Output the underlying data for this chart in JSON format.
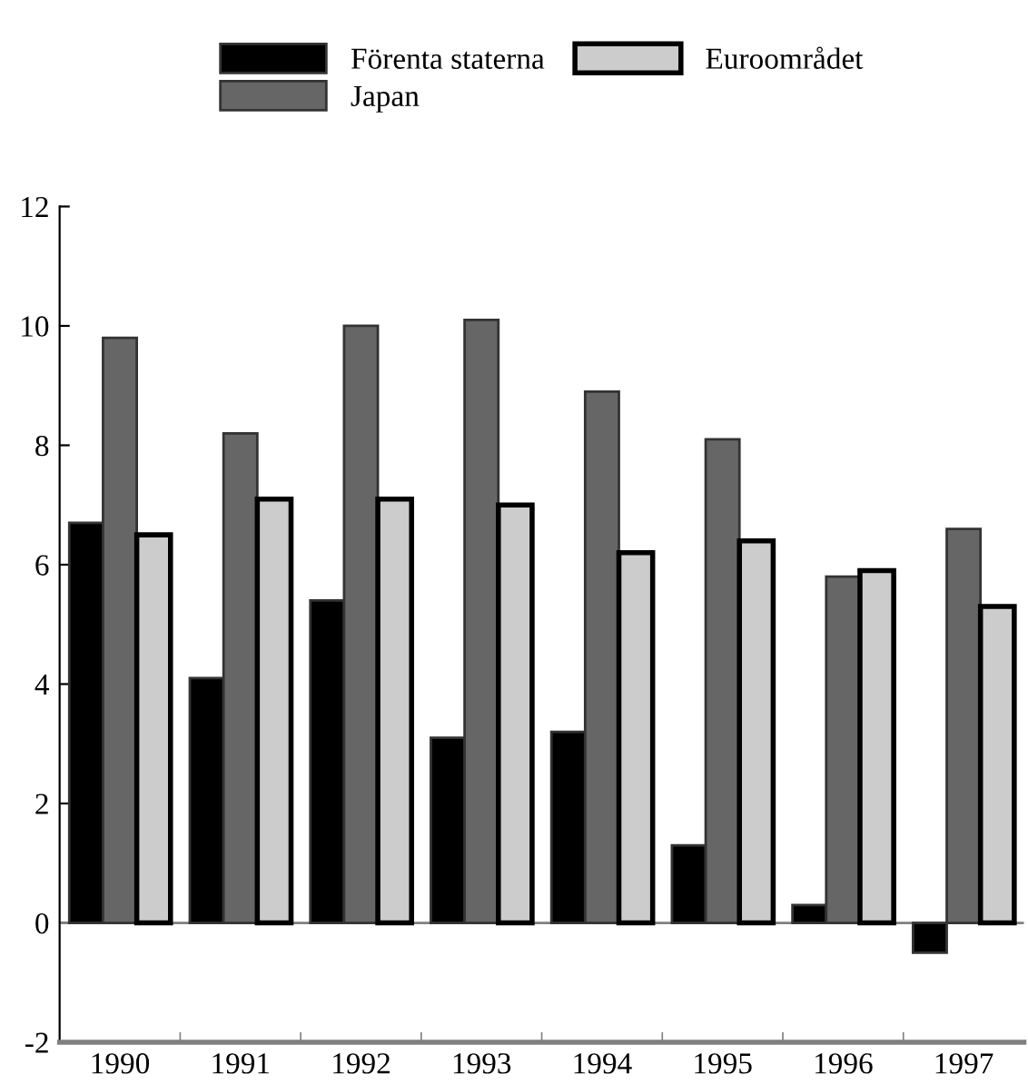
{
  "chart_data": {
    "type": "bar",
    "categories": [
      "1990",
      "1991",
      "1992",
      "1993",
      "1994",
      "1995",
      "1996",
      "1997"
    ],
    "series": [
      {
        "name": "Förenta staterna",
        "color": "#000000",
        "values": [
          6.7,
          4.1,
          5.4,
          3.1,
          3.2,
          1.3,
          0.3,
          -0.5
        ]
      },
      {
        "name": "Japan",
        "color": "#666666",
        "values": [
          9.8,
          8.2,
          10.0,
          10.1,
          8.9,
          8.1,
          5.8,
          6.6
        ]
      },
      {
        "name": "Euroområdet",
        "color": "#cccccc",
        "values": [
          6.5,
          7.1,
          7.1,
          7.0,
          6.2,
          6.4,
          5.9,
          5.3
        ]
      }
    ],
    "ylim": [
      -2,
      12
    ],
    "yticks": [
      -2,
      0,
      2,
      4,
      6,
      8,
      10,
      12
    ],
    "grid": false,
    "legend": "top",
    "ref_lines": [
      {
        "axis": "y",
        "value": 0,
        "color": "#808080"
      }
    ]
  }
}
